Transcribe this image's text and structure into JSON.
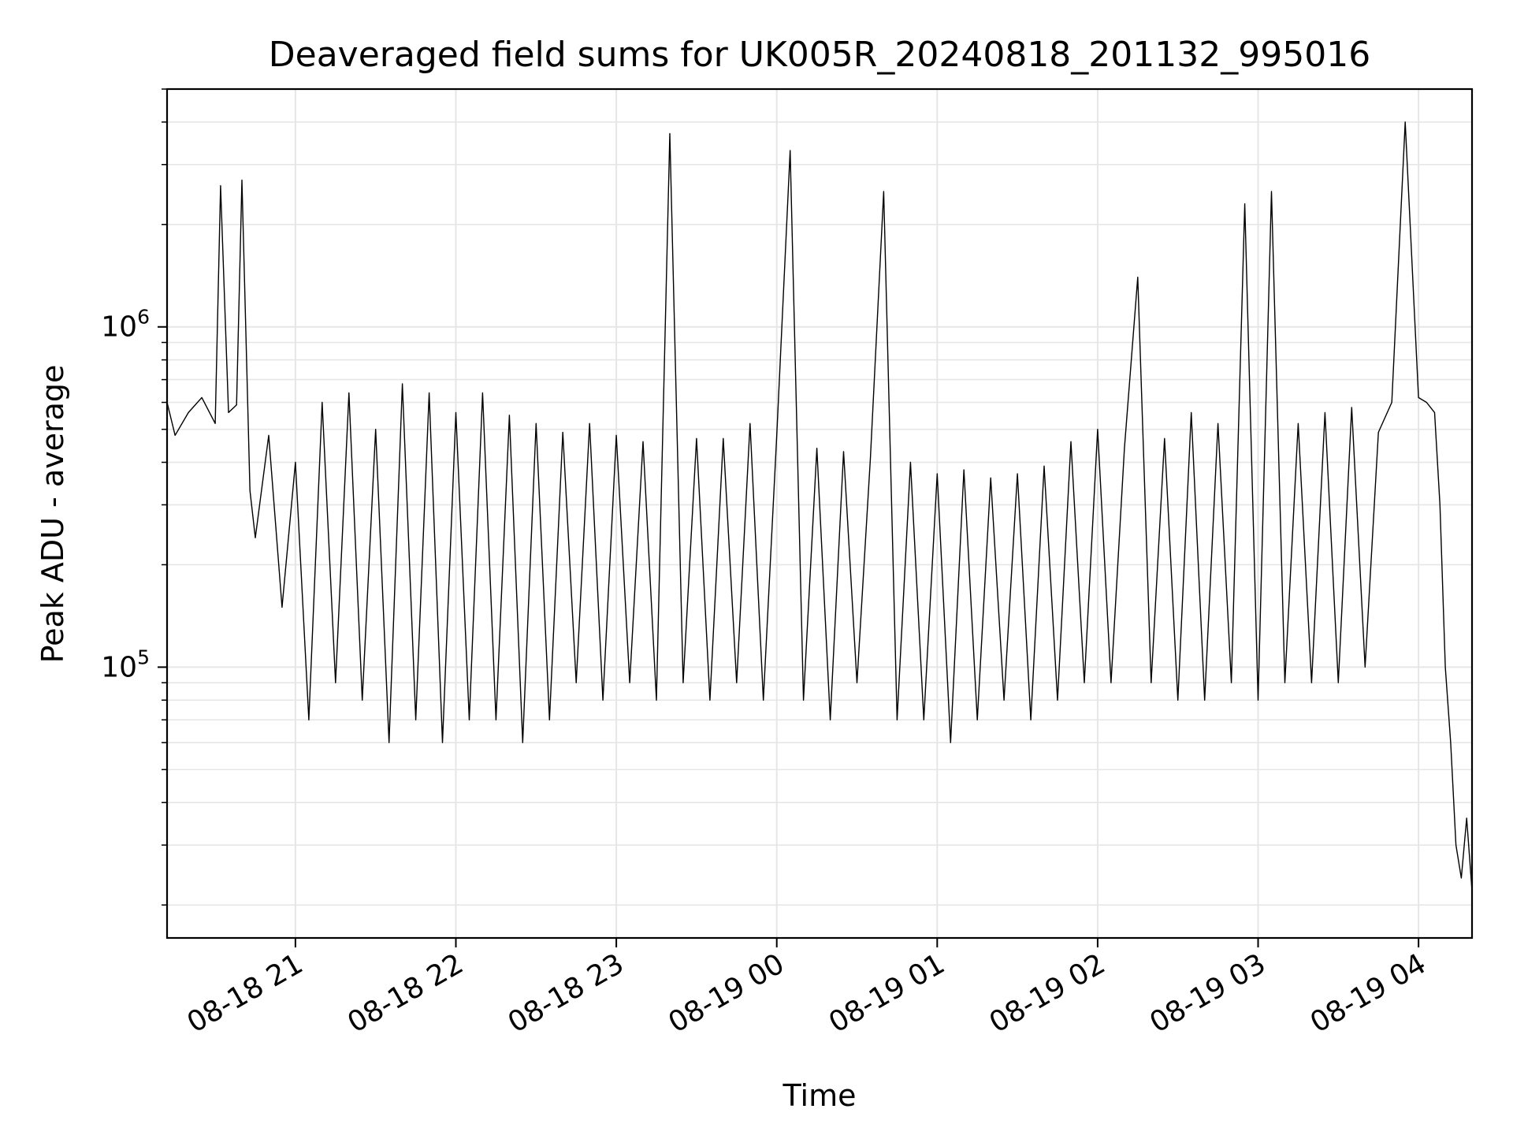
{
  "chart_data": {
    "type": "line",
    "title": "Deaveraged field sums for UK005R_20240818_201132_995016",
    "xlabel": "Time",
    "ylabel": "Peak ADU - average",
    "yscale": "log",
    "grid": true,
    "legend": "none",
    "line_color": "#000000",
    "grid_color": "#e6e6e6",
    "xlim": [
      "2024-08-18 20:12",
      "2024-08-19 04:20"
    ],
    "ylim": [
      16000,
      5000000
    ],
    "x_ticks": [
      {
        "t": "2024-08-18 21:00",
        "label": "08-18 21"
      },
      {
        "t": "2024-08-18 22:00",
        "label": "08-18 22"
      },
      {
        "t": "2024-08-18 23:00",
        "label": "08-18 23"
      },
      {
        "t": "2024-08-19 00:00",
        "label": "08-19 00"
      },
      {
        "t": "2024-08-19 01:00",
        "label": "08-19 01"
      },
      {
        "t": "2024-08-19 02:00",
        "label": "08-19 02"
      },
      {
        "t": "2024-08-19 03:00",
        "label": "08-19 03"
      },
      {
        "t": "2024-08-19 04:00",
        "label": "08-19 04"
      }
    ],
    "y_ticks": [
      {
        "value": 100000,
        "base": "10",
        "exp": "5"
      },
      {
        "value": 1000000,
        "base": "10",
        "exp": "6"
      }
    ],
    "series": [
      {
        "x": [
          "2024-08-18 20:12",
          "2024-08-18 20:15",
          "2024-08-18 20:20",
          "2024-08-18 20:25",
          "2024-08-18 20:30",
          "2024-08-18 20:32",
          "2024-08-18 20:35",
          "2024-08-18 20:38",
          "2024-08-18 20:40",
          "2024-08-18 20:43",
          "2024-08-18 20:45",
          "2024-08-18 20:50",
          "2024-08-18 20:55",
          "2024-08-18 21:00",
          "2024-08-18 21:05",
          "2024-08-18 21:10",
          "2024-08-18 21:15",
          "2024-08-18 21:20",
          "2024-08-18 21:25",
          "2024-08-18 21:30",
          "2024-08-18 21:35",
          "2024-08-18 21:40",
          "2024-08-18 21:45",
          "2024-08-18 21:50",
          "2024-08-18 21:55",
          "2024-08-18 22:00",
          "2024-08-18 22:05",
          "2024-08-18 22:10",
          "2024-08-18 22:15",
          "2024-08-18 22:20",
          "2024-08-18 22:25",
          "2024-08-18 22:30",
          "2024-08-18 22:35",
          "2024-08-18 22:40",
          "2024-08-18 22:45",
          "2024-08-18 22:50",
          "2024-08-18 22:55",
          "2024-08-18 23:00",
          "2024-08-18 23:05",
          "2024-08-18 23:10",
          "2024-08-18 23:15",
          "2024-08-18 23:20",
          "2024-08-18 23:25",
          "2024-08-18 23:30",
          "2024-08-18 23:35",
          "2024-08-18 23:40",
          "2024-08-18 23:45",
          "2024-08-18 23:50",
          "2024-08-18 23:55",
          "2024-08-19 00:00",
          "2024-08-19 00:05",
          "2024-08-19 00:10",
          "2024-08-19 00:15",
          "2024-08-19 00:20",
          "2024-08-19 00:25",
          "2024-08-19 00:30",
          "2024-08-19 00:35",
          "2024-08-19 00:40",
          "2024-08-19 00:45",
          "2024-08-19 00:50",
          "2024-08-19 00:55",
          "2024-08-19 01:00",
          "2024-08-19 01:05",
          "2024-08-19 01:10",
          "2024-08-19 01:15",
          "2024-08-19 01:20",
          "2024-08-19 01:25",
          "2024-08-19 01:30",
          "2024-08-19 01:35",
          "2024-08-19 01:40",
          "2024-08-19 01:45",
          "2024-08-19 01:50",
          "2024-08-19 01:55",
          "2024-08-19 02:00",
          "2024-08-19 02:05",
          "2024-08-19 02:10",
          "2024-08-19 02:15",
          "2024-08-19 02:20",
          "2024-08-19 02:25",
          "2024-08-19 02:30",
          "2024-08-19 02:35",
          "2024-08-19 02:40",
          "2024-08-19 02:45",
          "2024-08-19 02:50",
          "2024-08-19 02:55",
          "2024-08-19 03:00",
          "2024-08-19 03:05",
          "2024-08-19 03:10",
          "2024-08-19 03:15",
          "2024-08-19 03:20",
          "2024-08-19 03:25",
          "2024-08-19 03:30",
          "2024-08-19 03:35",
          "2024-08-19 03:40",
          "2024-08-19 03:45",
          "2024-08-19 03:50",
          "2024-08-19 03:55",
          "2024-08-19 04:00",
          "2024-08-19 04:03",
          "2024-08-19 04:06",
          "2024-08-19 04:08",
          "2024-08-19 04:10",
          "2024-08-19 04:12",
          "2024-08-19 04:14",
          "2024-08-19 04:16",
          "2024-08-19 04:18",
          "2024-08-19 04:20"
        ],
        "y": [
          600000,
          480000,
          560000,
          620000,
          520000,
          2600000,
          560000,
          590000,
          2700000,
          330000,
          240000,
          480000,
          150000,
          400000,
          70000,
          600000,
          90000,
          640000,
          80000,
          500000,
          60000,
          680000,
          70000,
          640000,
          60000,
          560000,
          70000,
          640000,
          70000,
          550000,
          60000,
          520000,
          70000,
          490000,
          90000,
          520000,
          80000,
          480000,
          90000,
          460000,
          80000,
          3700000,
          90000,
          470000,
          80000,
          470000,
          90000,
          520000,
          80000,
          480000,
          3300000,
          80000,
          440000,
          70000,
          430000,
          90000,
          410000,
          2500000,
          70000,
          400000,
          70000,
          370000,
          60000,
          380000,
          70000,
          360000,
          80000,
          370000,
          70000,
          390000,
          80000,
          460000,
          90000,
          500000,
          90000,
          440000,
          1400000,
          90000,
          470000,
          80000,
          560000,
          80000,
          520000,
          90000,
          2300000,
          80000,
          2500000,
          90000,
          520000,
          90000,
          560000,
          90000,
          580000,
          100000,
          490000,
          600000,
          4000000,
          620000,
          600000,
          560000,
          300000,
          100000,
          60000,
          30000,
          24000,
          36000,
          22000
        ]
      }
    ]
  }
}
